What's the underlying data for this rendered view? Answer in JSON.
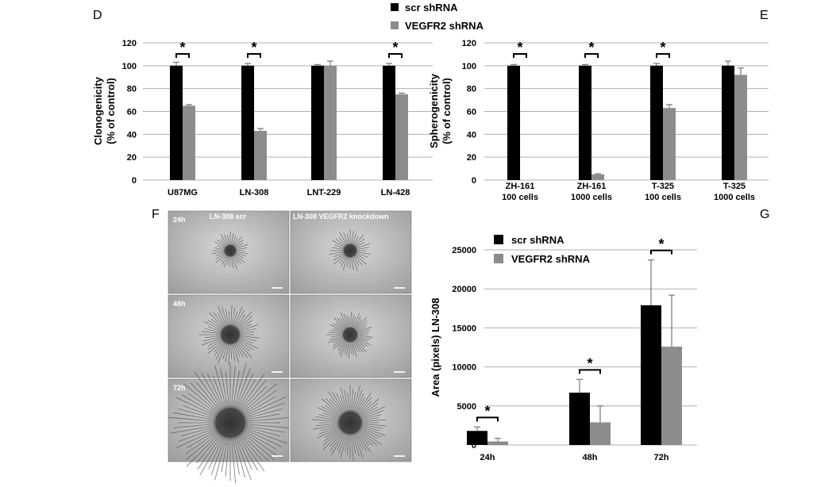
{
  "colors": {
    "scr": "#000000",
    "vegfr2": "#8c8c8c",
    "grid": "#b0b0b0"
  },
  "legend_top": {
    "series": [
      "scr  shRNA",
      "VEGFR2 shRNA"
    ]
  },
  "panels": {
    "D": {
      "letter": "D"
    },
    "E": {
      "letter": "E"
    },
    "F": {
      "letter": "F",
      "col_labels": [
        "LN-308 scr",
        "LN-308 VEGFR2 knockdown"
      ],
      "row_labels": [
        "24h",
        "48h",
        "72h"
      ]
    },
    "G": {
      "letter": "G"
    }
  },
  "chart_data": [
    {
      "id": "D",
      "type": "bar",
      "ylabel": [
        "Clonogenicity",
        "(% of control)"
      ],
      "ylim": [
        0,
        120
      ],
      "yticks": [
        0,
        20,
        40,
        60,
        80,
        100,
        120
      ],
      "categories": [
        [
          "U87MG"
        ],
        [
          "LN-308"
        ],
        [
          "LNT-229"
        ],
        [
          "LN-428"
        ]
      ],
      "series": [
        {
          "name": "scr  shRNA",
          "values": [
            100,
            100,
            100,
            100
          ],
          "errors": [
            3,
            2,
            1,
            2
          ]
        },
        {
          "name": "VEGFR2 shRNA",
          "values": [
            65,
            43,
            100,
            75
          ],
          "errors": [
            1,
            2,
            4,
            1
          ]
        }
      ],
      "significance": [
        true,
        true,
        false,
        true
      ],
      "star": "*",
      "grid": true
    },
    {
      "id": "E",
      "type": "bar",
      "ylabel": [
        "Spherogenicity",
        "(% of control)"
      ],
      "ylim": [
        0,
        120
      ],
      "yticks": [
        0,
        20,
        40,
        60,
        80,
        100,
        120
      ],
      "categories": [
        [
          "ZH-161",
          "100 cells"
        ],
        [
          "ZH-161",
          "1000 cells"
        ],
        [
          "T-325",
          "100 cells"
        ],
        [
          "T-325",
          "1000 cells"
        ]
      ],
      "series": [
        {
          "name": "scr  shRNA",
          "values": [
            100,
            100,
            100,
            100
          ],
          "errors": [
            1,
            1,
            2,
            4
          ]
        },
        {
          "name": "VEGFR2 shRNA",
          "values": [
            0,
            5,
            63,
            92
          ],
          "errors": [
            0,
            0.5,
            3,
            6
          ]
        }
      ],
      "significance": [
        true,
        true,
        true,
        false
      ],
      "star": "*",
      "grid": true
    },
    {
      "id": "G",
      "type": "bar",
      "ylabel": [
        "Area (pixels) LN-308"
      ],
      "ylim": [
        0,
        25000
      ],
      "yticks": [
        0,
        5000,
        10000,
        15000,
        20000,
        25000
      ],
      "categories": [
        [
          "24h"
        ],
        [
          "48h"
        ],
        [
          "72h"
        ]
      ],
      "legend": [
        "scr shRNA",
        "VEGFR2 shRNA"
      ],
      "series": [
        {
          "name": "scr shRNA",
          "values": [
            1800,
            6700,
            17900
          ],
          "errors": [
            500,
            1700,
            5800
          ]
        },
        {
          "name": "VEGFR2 shRNA",
          "values": [
            450,
            2900,
            12600
          ],
          "errors": [
            400,
            2100,
            6600
          ]
        }
      ],
      "significance": [
        true,
        true,
        true
      ],
      "star": "*",
      "grid": true
    }
  ]
}
